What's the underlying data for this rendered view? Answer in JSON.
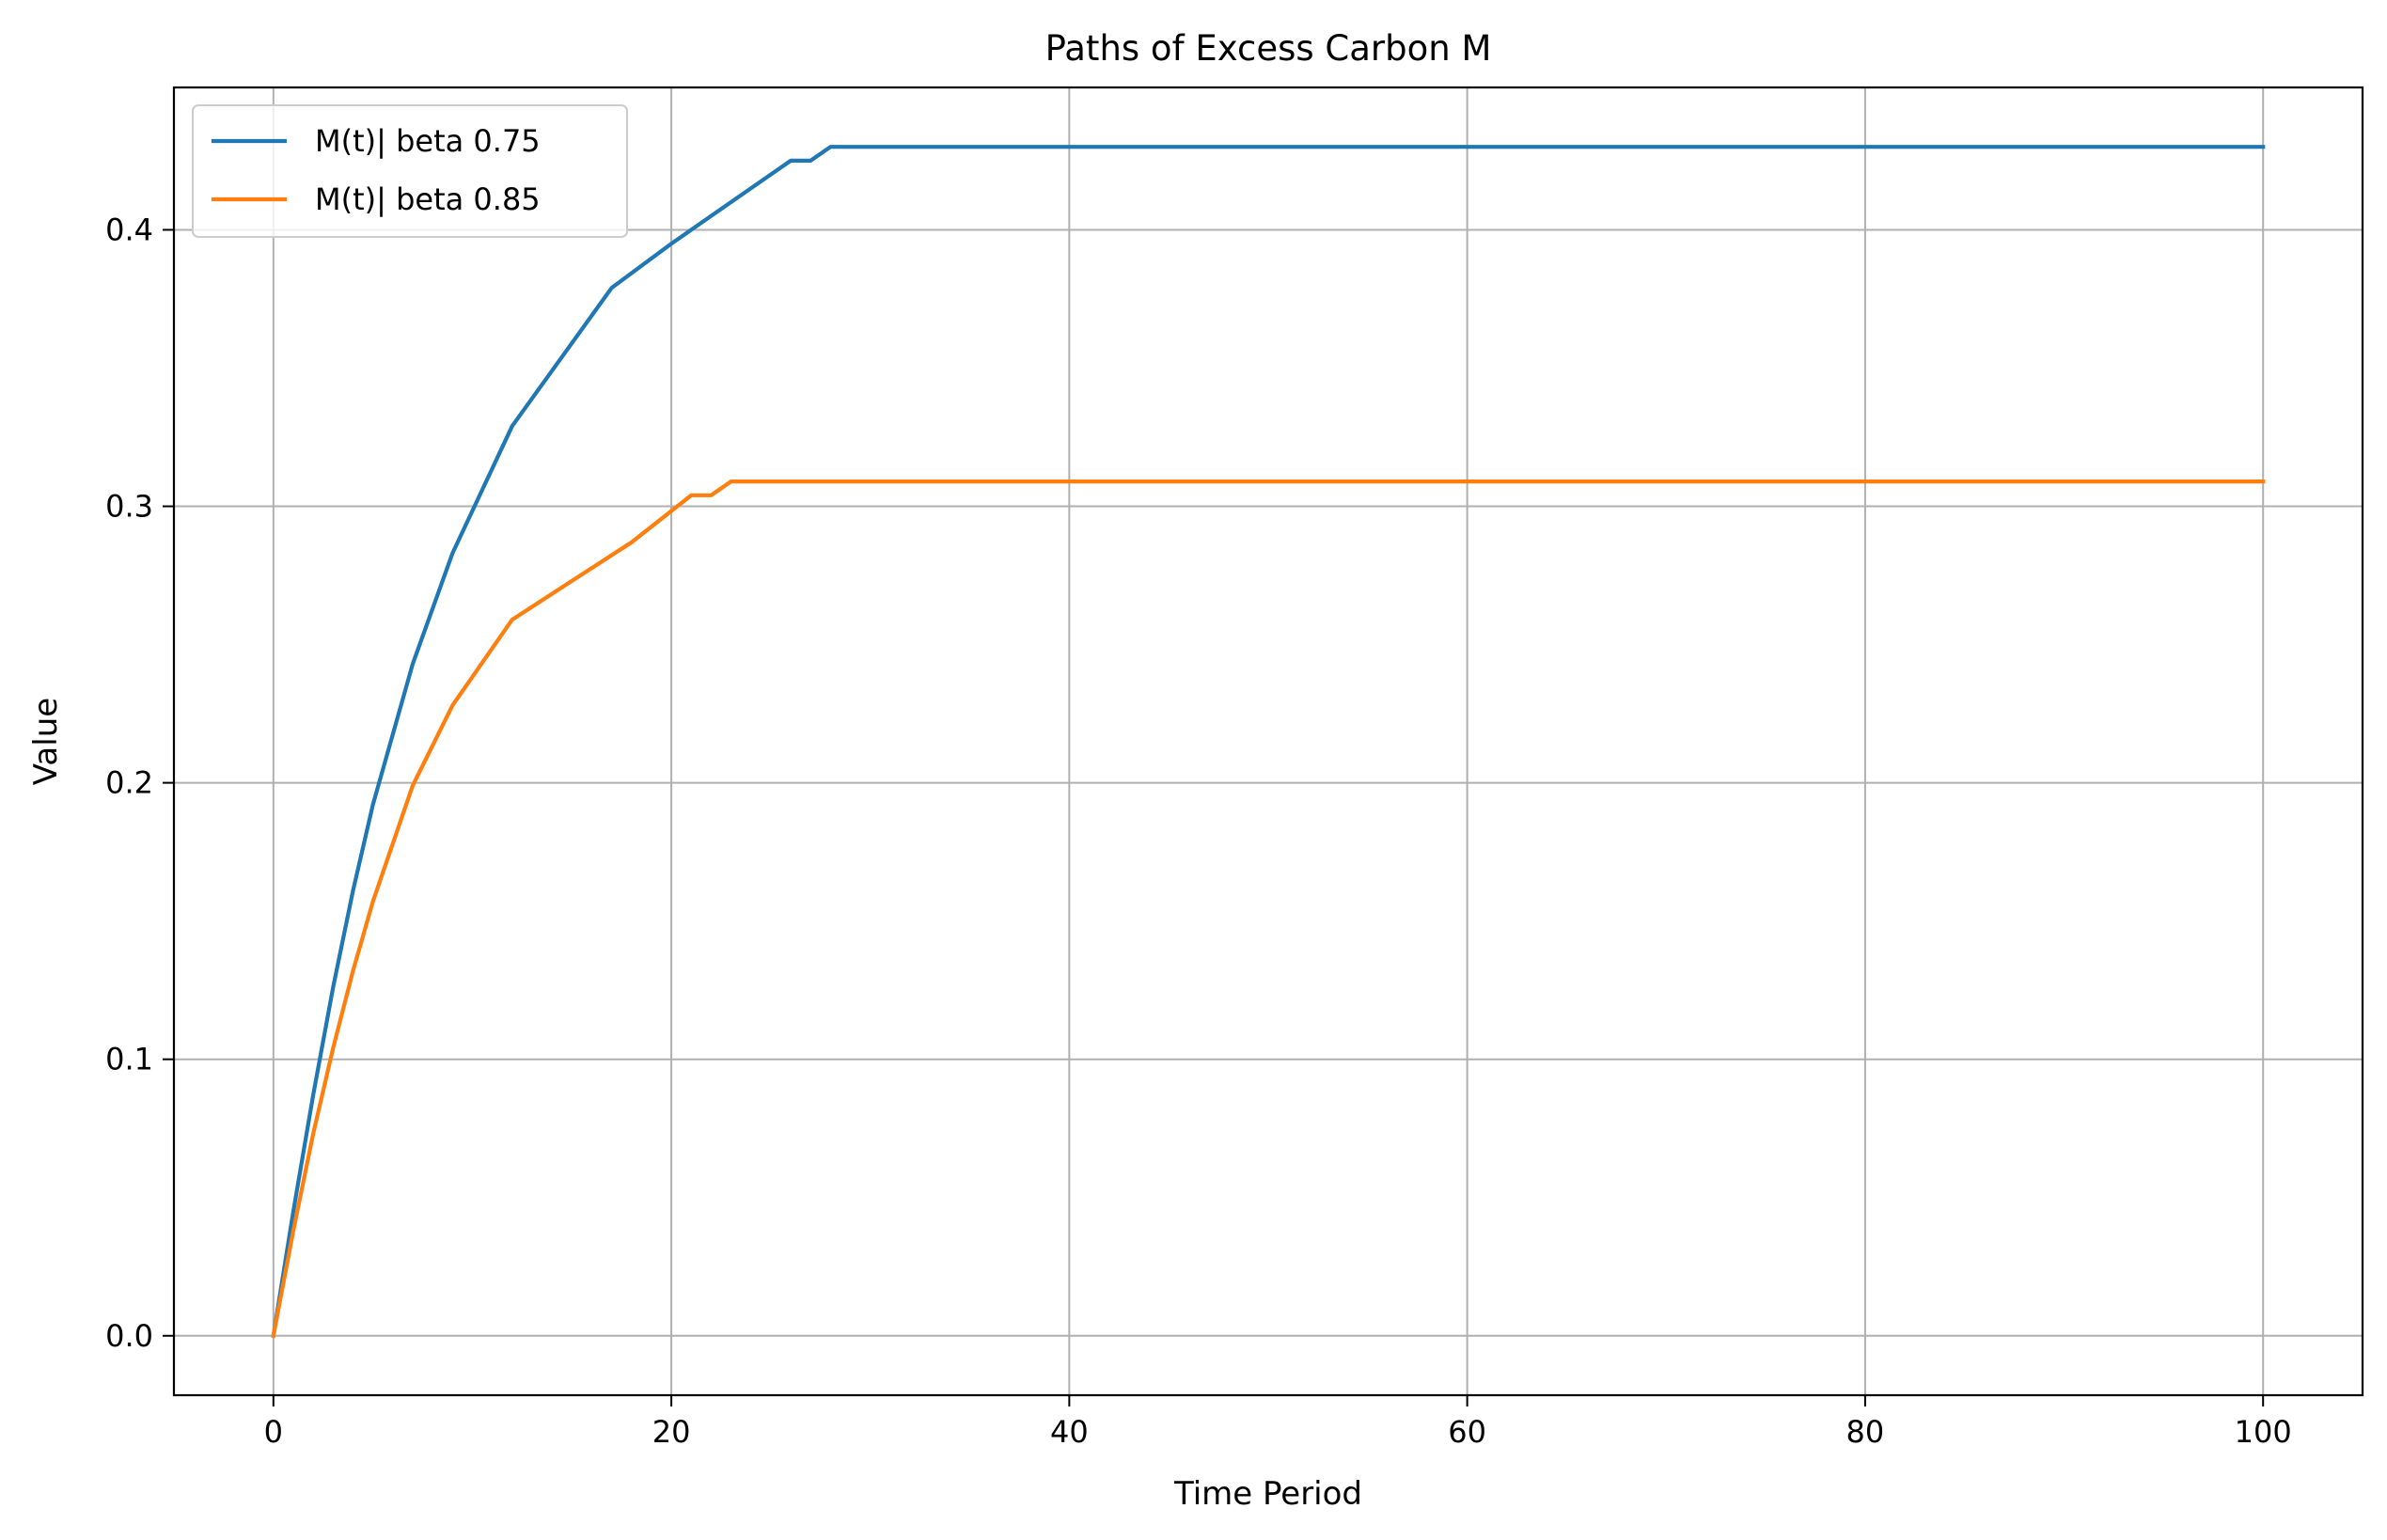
{
  "chart_data": {
    "type": "line",
    "title": "Paths of Excess Carbon M",
    "xlabel": "Time Period",
    "ylabel": "Value",
    "xlim": [
      -5,
      105
    ],
    "ylim": [
      -0.0215,
      0.4515
    ],
    "xticks": [
      0,
      20,
      40,
      60,
      80,
      100
    ],
    "xtick_labels": [
      "0",
      "20",
      "40",
      "60",
      "80",
      "100"
    ],
    "yticks": [
      0.0,
      0.1,
      0.2,
      0.3,
      0.4
    ],
    "ytick_labels": [
      "0.0",
      "0.1",
      "0.2",
      "0.3",
      "0.4"
    ],
    "grid": true,
    "legend_position": "upper left",
    "series": [
      {
        "name": "M(t)| beta 0.75",
        "color": "#1f77b4",
        "x": [
          0,
          1,
          2,
          3,
          4,
          5,
          7,
          9,
          12,
          17,
          20,
          22,
          24,
          26,
          27,
          28,
          30,
          40,
          60,
          80,
          100
        ],
        "values": [
          0.0,
          0.045,
          0.087,
          0.126,
          0.161,
          0.192,
          0.243,
          0.283,
          0.329,
          0.379,
          0.395,
          0.405,
          0.415,
          0.425,
          0.425,
          0.43,
          0.43,
          0.43,
          0.43,
          0.43,
          0.43
        ]
      },
      {
        "name": "M(t)| beta 0.85",
        "color": "#ff7f0e",
        "x": [
          0,
          1,
          2,
          3,
          4,
          5,
          7,
          9,
          12,
          15,
          18,
          21,
          22,
          23,
          30,
          40,
          60,
          80,
          100
        ],
        "values": [
          0.0,
          0.038,
          0.073,
          0.104,
          0.132,
          0.157,
          0.199,
          0.228,
          0.259,
          0.273,
          0.287,
          0.304,
          0.304,
          0.309,
          0.309,
          0.309,
          0.309,
          0.309,
          0.309
        ]
      }
    ]
  }
}
